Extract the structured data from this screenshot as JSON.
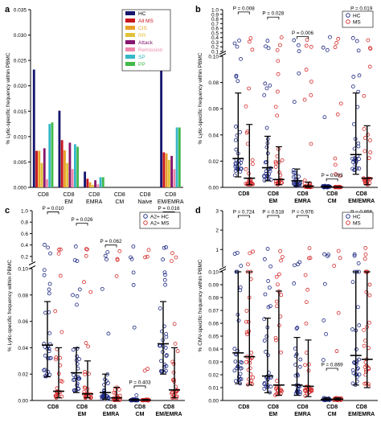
{
  "colors": {
    "hc_blue": "#1a2580",
    "ms_red": "#d42a2a",
    "axis": "#000000",
    "bars": {
      "HC": "#16166e",
      "All MS": "#c8161e",
      "CIS": "#e8a02a",
      "RR": "#e0c23a",
      "Attack": "#86176e",
      "Remission": "#ee88aa",
      "SP": "#35b7c7",
      "PP": "#43b84a"
    }
  },
  "chart_data": [
    {
      "id": "a",
      "type": "bar",
      "panel_label": "a",
      "ylabel": "% Lytic-specific frequency within PBMC",
      "ylim": [
        0,
        0.035
      ],
      "yticks": [
        0,
        0.005,
        0.01,
        0.015,
        0.02,
        0.025,
        0.03,
        0.035
      ],
      "ytick_labels": [
        "0.000",
        "0.005",
        "0.010",
        "0.015",
        "0.020",
        "0.025",
        "0.030",
        "0.035"
      ],
      "categories": [
        [
          "CD8"
        ],
        [
          "CD8",
          "EM"
        ],
        [
          "CD8",
          "EMRA"
        ],
        [
          "CD8",
          "CM"
        ],
        [
          "CD8",
          "Naive"
        ],
        [
          "CD8",
          "EM/EMRA"
        ]
      ],
      "series": [
        {
          "name": "HC",
          "values": [
            0.0232,
            0.0151,
            0.0031,
            0.0,
            0.0,
            0.0242
          ]
        },
        {
          "name": "All MS",
          "values": [
            0.0072,
            0.0093,
            0.0017,
            0.0,
            0.0,
            0.0069
          ]
        },
        {
          "name": "CIS",
          "values": [
            0.0072,
            0.0073,
            0.001,
            0.0,
            0.0,
            0.0067
          ]
        },
        {
          "name": "RR",
          "values": [
            0.0048,
            0.0048,
            0.0005,
            0.0,
            0.0,
            0.0054
          ]
        },
        {
          "name": "Attack",
          "values": [
            0.0077,
            0.0088,
            0.0014,
            0.0,
            0.0,
            0.0062
          ]
        },
        {
          "name": "Remission",
          "values": [
            0.0016,
            0.0036,
            0.0006,
            0.0,
            0.0,
            0.0036
          ]
        },
        {
          "name": "SP",
          "values": [
            0.0125,
            0.0085,
            0.002,
            0.0,
            0.0,
            0.0118
          ]
        },
        {
          "name": "PP",
          "values": [
            0.0128,
            0.008,
            0.002,
            0.0,
            0.0,
            0.0118
          ]
        }
      ],
      "legend_position": "top-right"
    },
    {
      "id": "b",
      "type": "scatter",
      "panel_label": "b",
      "ylabel": "% Lytic-specific frequency within PBMC",
      "legend": [
        "HC",
        "MS"
      ],
      "legend_position": "top-right",
      "lower": {
        "ylim": [
          0,
          0.1
        ],
        "yticks": [
          0,
          0.02,
          0.04,
          0.06,
          0.08,
          0.1
        ],
        "ytick_labels": [
          "0.00",
          "0.02",
          "0.04",
          "0.06",
          "0.08",
          "0.10"
        ]
      },
      "upper": {
        "ylim": [
          0.1,
          1.0
        ],
        "yticks": [
          0.1,
          0.2,
          0.3,
          0.4,
          0.5,
          0.6,
          0.7,
          0.8,
          0.9,
          1.0
        ],
        "ytick_labels": [
          "0.1",
          "0.2",
          "0.3",
          "0.4",
          "0.5",
          "0.6",
          "0.7",
          "0.8",
          "0.9",
          "1.0"
        ]
      },
      "categories": [
        [
          "CD8"
        ],
        [
          "CD8",
          "EM"
        ],
        [
          "CD8",
          "EMRA"
        ],
        [
          "CD8",
          "CM"
        ],
        [
          "CD8",
          "EM/EMRA"
        ]
      ],
      "p_values": [
        "P = 0.008",
        "P = 0.028",
        "P = 0.006",
        "P = 0.093",
        "P = 0.019"
      ],
      "p_level": [
        0.95,
        0.84,
        0.42,
        0.0065,
        0.95
      ],
      "groups": [
        {
          "hc": {
            "median": 0.022,
            "q1": 0.008,
            "q3": 0.072
          },
          "ms": {
            "median": 0.007,
            "q1": 0.002,
            "q3": 0.048
          }
        },
        {
          "hc": {
            "median": 0.015,
            "q1": 0.005,
            "q3": 0.039
          },
          "ms": {
            "median": 0.006,
            "q1": 0.002,
            "q3": 0.031
          }
        },
        {
          "hc": {
            "median": 0.005,
            "q1": 0.001,
            "q3": 0.014
          },
          "ms": {
            "median": 0.001,
            "q1": 0.0,
            "q3": 0.004
          }
        },
        {
          "hc": {
            "median": 0.0005,
            "q1": 0.0,
            "q3": 0.001
          },
          "ms": {
            "median": 0.0002,
            "q1": 0.0,
            "q3": 0.0005
          }
        },
        {
          "hc": {
            "median": 0.025,
            "q1": 0.01,
            "q3": 0.072
          },
          "ms": {
            "median": 0.007,
            "q1": 0.002,
            "q3": 0.047
          }
        }
      ]
    },
    {
      "id": "c",
      "type": "scatter",
      "panel_label": "c",
      "ylabel": "% Lytic-specific frequency within PBMC",
      "legend": [
        "A2+ HC",
        "A2+ MS"
      ],
      "legend_position": "top-right",
      "lower": {
        "ylim": [
          0,
          0.1
        ],
        "yticks": [
          0,
          0.02,
          0.04,
          0.06,
          0.08,
          0.1
        ],
        "ytick_labels": [
          "0.00",
          "0.02",
          "0.04",
          "0.06",
          "0.08",
          "0.10"
        ]
      },
      "upper": {
        "ylim": [
          0.1,
          1.0
        ],
        "yticks": [
          0.2,
          0.4,
          0.6,
          0.8,
          1.0
        ],
        "ytick_labels": [
          "0.2",
          "0.4",
          "0.6",
          "0.8",
          "1.0"
        ]
      },
      "categories": [
        [
          "CD8"
        ],
        [
          "CD8",
          "EM"
        ],
        [
          "CD8",
          "EMRA"
        ],
        [
          "CD8",
          "CM"
        ],
        [
          "CD8",
          "EM/EMRA"
        ]
      ],
      "p_values": [
        "P = 0.010",
        "P = 0.026",
        "P = 0.062",
        "P = 0.403",
        "P = 0.016"
      ],
      "p_level": [
        0.98,
        0.78,
        0.4,
        0.011,
        0.98
      ],
      "groups": [
        {
          "hc": {
            "median": 0.042,
            "q1": 0.018,
            "q3": 0.075
          },
          "ms": {
            "median": 0.007,
            "q1": 0.002,
            "q3": 0.04
          }
        },
        {
          "hc": {
            "median": 0.021,
            "q1": 0.006,
            "q3": 0.04
          },
          "ms": {
            "median": 0.005,
            "q1": 0.002,
            "q3": 0.03
          }
        },
        {
          "hc": {
            "median": 0.006,
            "q1": 0.001,
            "q3": 0.02
          },
          "ms": {
            "median": 0.002,
            "q1": 0.0,
            "q3": 0.01
          }
        },
        {
          "hc": {
            "median": 0.0005,
            "q1": 0.0,
            "q3": 0.001
          },
          "ms": {
            "median": 0.0003,
            "q1": 0.0,
            "q3": 0.0008
          }
        },
        {
          "hc": {
            "median": 0.043,
            "q1": 0.02,
            "q3": 0.075
          },
          "ms": {
            "median": 0.008,
            "q1": 0.002,
            "q3": 0.04
          }
        }
      ]
    },
    {
      "id": "d",
      "type": "scatter",
      "panel_label": "d",
      "ylabel": "% CMV-specific frequency within PBMC",
      "legend": [
        "HC",
        "MS"
      ],
      "legend_position": "top-right",
      "lower": {
        "ylim": [
          0,
          0.1
        ],
        "yticks": [
          0,
          0.01,
          0.02,
          0.03,
          0.04,
          0.05,
          0.06,
          0.07,
          0.08,
          0.09,
          0.1
        ],
        "ytick_labels": [
          "0.00",
          "0.01",
          "0.02",
          "0.03",
          "0.04",
          "0.05",
          "0.06",
          "0.07",
          "0.08",
          "0.09",
          "0.10"
        ]
      },
      "upper": {
        "ylim": [
          0.1,
          3.0
        ],
        "yticks": [
          1,
          2,
          3
        ],
        "ytick_labels": [
          "1",
          "2",
          "3"
        ]
      },
      "categories": [
        [
          "CD8"
        ],
        [
          "CD8",
          "EM"
        ],
        [
          "CD8",
          "EMRA"
        ],
        [
          "CD8",
          "CM"
        ],
        [
          "CD8",
          "EM/EMRA"
        ]
      ],
      "p_values": [
        "P = 0.724",
        "P = 0.518",
        "P = 0.976",
        "P = 0.869",
        "P = 0.956"
      ],
      "p_level": [
        2.75,
        2.75,
        2.75,
        0.025,
        2.75
      ],
      "groups": [
        {
          "hc": {
            "median": 0.037,
            "q1": 0.013,
            "q3": 0.1
          },
          "ms": {
            "median": 0.034,
            "q1": 0.012,
            "q3": 0.1
          }
        },
        {
          "hc": {
            "median": 0.019,
            "q1": 0.006,
            "q3": 0.064
          },
          "ms": {
            "median": 0.012,
            "q1": 0.004,
            "q3": 0.085
          }
        },
        {
          "hc": {
            "median": 0.012,
            "q1": 0.004,
            "q3": 0.049
          },
          "ms": {
            "median": 0.011,
            "q1": 0.003,
            "q3": 0.047
          }
        },
        {
          "hc": {
            "median": 0.0008,
            "q1": 0.0002,
            "q3": 0.002
          },
          "ms": {
            "median": 0.001,
            "q1": 0.0002,
            "q3": 0.002
          }
        },
        {
          "hc": {
            "median": 0.035,
            "q1": 0.012,
            "q3": 0.1
          },
          "ms": {
            "median": 0.032,
            "q1": 0.01,
            "q3": 0.1
          }
        }
      ]
    }
  ]
}
